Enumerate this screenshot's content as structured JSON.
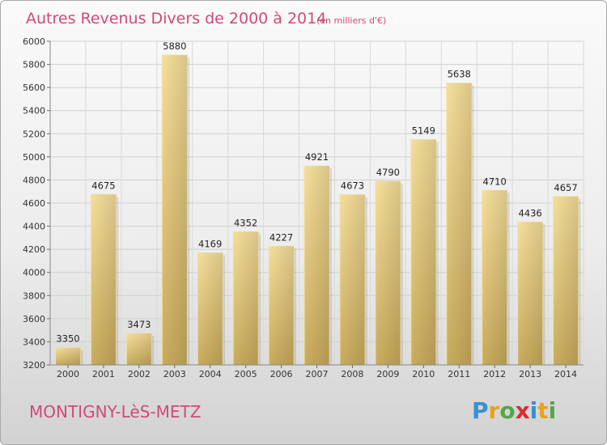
{
  "chart_data": {
    "type": "bar",
    "title": "Autres Revenus Divers de 2000 à 2014",
    "subtitle": "(en milliers d'€)",
    "categories": [
      "2000",
      "2001",
      "2002",
      "2003",
      "2004",
      "2005",
      "2006",
      "2007",
      "2008",
      "2009",
      "2010",
      "2011",
      "2012",
      "2013",
      "2014"
    ],
    "values": [
      3350,
      4675,
      3473,
      5880,
      4169,
      4352,
      4227,
      4921,
      4673,
      4790,
      5149,
      5638,
      4710,
      4436,
      4657
    ],
    "yticks": [
      3200,
      3400,
      3600,
      3800,
      4000,
      4200,
      4400,
      4600,
      4800,
      5000,
      5200,
      5400,
      5600,
      5800,
      6000
    ],
    "ylim": [
      3200,
      6000
    ],
    "grid": true,
    "bar_color": "#e2c46f"
  },
  "footer": {
    "commune": "MONTIGNY-LèS-METZ",
    "logo_letters": [
      {
        "ch": "P",
        "color": "#3a8fd0"
      },
      {
        "ch": "r",
        "color": "#e8a21c"
      },
      {
        "ch": "o",
        "color": "#52a847"
      },
      {
        "ch": "x",
        "color": "#d9302e"
      },
      {
        "ch": "i",
        "color": "#3a8fd0"
      },
      {
        "ch": "t",
        "color": "#e8a21c"
      },
      {
        "ch": "i",
        "color": "#52a847"
      }
    ]
  }
}
